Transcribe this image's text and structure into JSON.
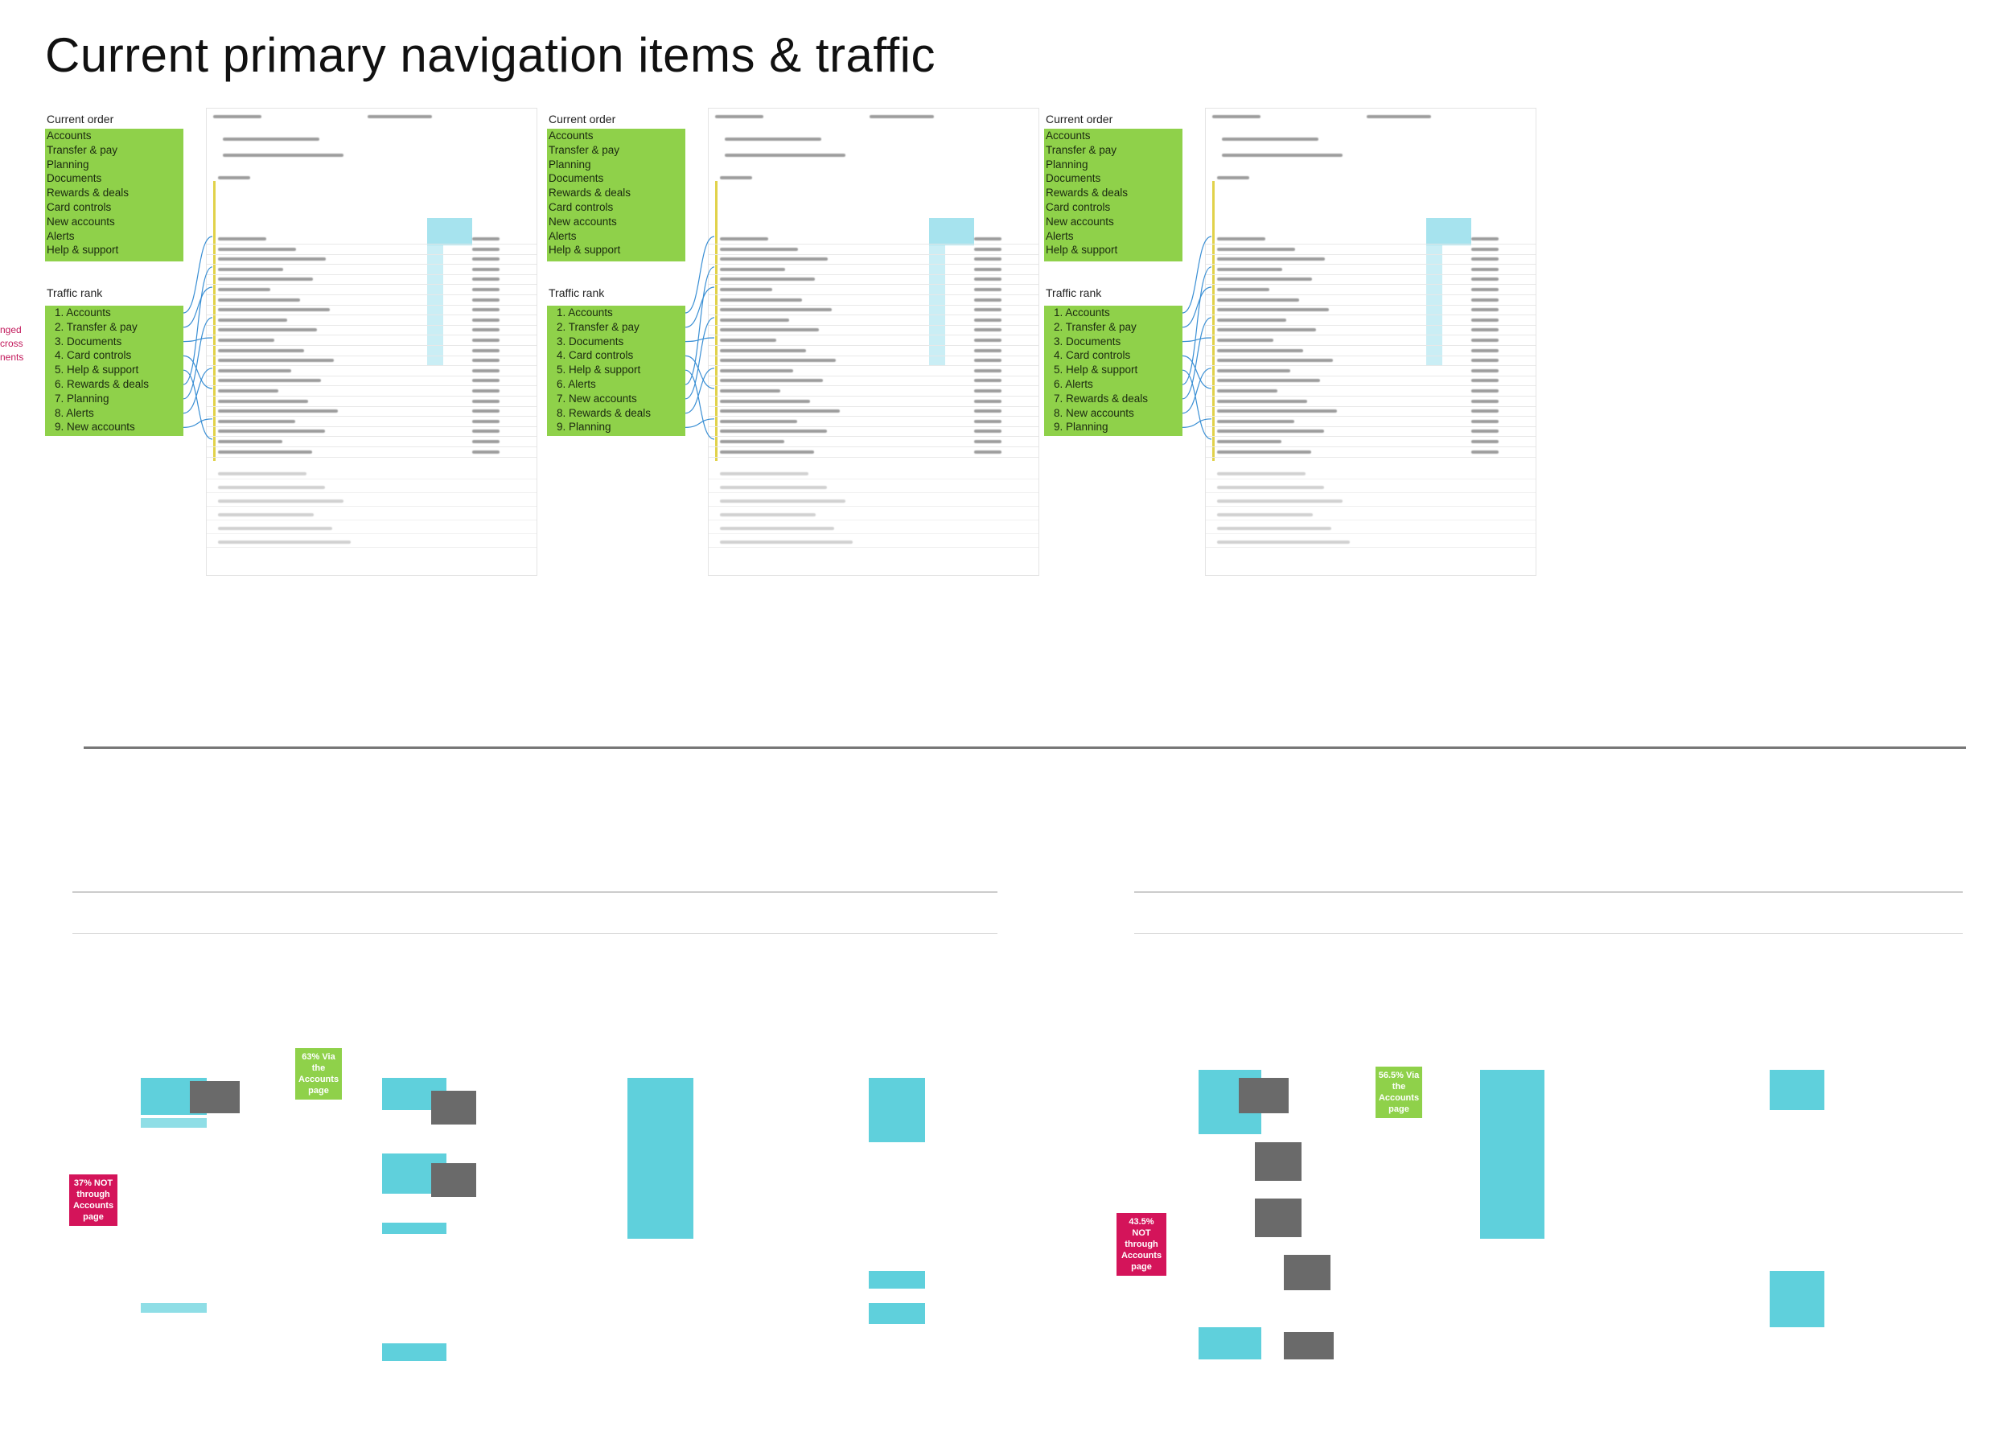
{
  "page": {
    "title": "Current primary navigation items & traffic"
  },
  "side_note": [
    "nged",
    "cross",
    "nents"
  ],
  "panels": [
    {
      "current_order_label": "Current order",
      "current_order": [
        "Accounts",
        "Transfer & pay",
        "Planning",
        "Documents",
        "Rewards & deals",
        "Card controls",
        "New accounts",
        "Alerts",
        "Help & support"
      ],
      "traffic_rank_label": "Traffic rank",
      "traffic_rank": [
        "1. Accounts",
        "2. Transfer & pay",
        "3. Documents",
        "4. Card controls",
        "5. Help & support",
        "6. Rewards & deals",
        "7. Planning",
        "8. Alerts",
        "9. New accounts"
      ]
    },
    {
      "current_order_label": "Current order",
      "current_order": [
        "Accounts",
        "Transfer & pay",
        "Planning",
        "Documents",
        "Rewards & deals",
        "Card controls",
        "New accounts",
        "Alerts",
        "Help & support"
      ],
      "traffic_rank_label": "Traffic rank",
      "traffic_rank": [
        "1. Accounts",
        "2. Transfer & pay",
        "3. Documents",
        "4. Card controls",
        "5. Help & support",
        "6. Alerts",
        "7. New accounts",
        "8. Rewards & deals",
        "9. Planning"
      ]
    },
    {
      "current_order_label": "Current order",
      "current_order": [
        "Accounts",
        "Transfer & pay",
        "Planning",
        "Documents",
        "Rewards & deals",
        "Card controls",
        "New accounts",
        "Alerts",
        "Help & support"
      ],
      "traffic_rank_label": "Traffic rank",
      "traffic_rank": [
        "1. Accounts",
        "2. Transfer & pay",
        "3. Documents",
        "4. Card controls",
        "5. Help & support",
        "6. Alerts",
        "7. Rewards & deals",
        "8. New accounts",
        "9. Planning"
      ]
    }
  ],
  "flows": [
    {
      "via_callout": [
        "63% Via",
        "the",
        "Accounts",
        "page"
      ],
      "not_callout": [
        "37% NOT",
        "through",
        "Accounts",
        "page"
      ]
    },
    {
      "via_callout": [
        "56.5% Via",
        "the",
        "Accounts",
        "page"
      ],
      "not_callout": [
        "43.5%",
        "NOT",
        "through",
        "Accounts",
        "page"
      ]
    }
  ],
  "colors": {
    "green": "#8fd14a",
    "pink": "#d4145a",
    "flow_cyan": "#5fd0dc",
    "link_blue": "#3a8fd4"
  }
}
